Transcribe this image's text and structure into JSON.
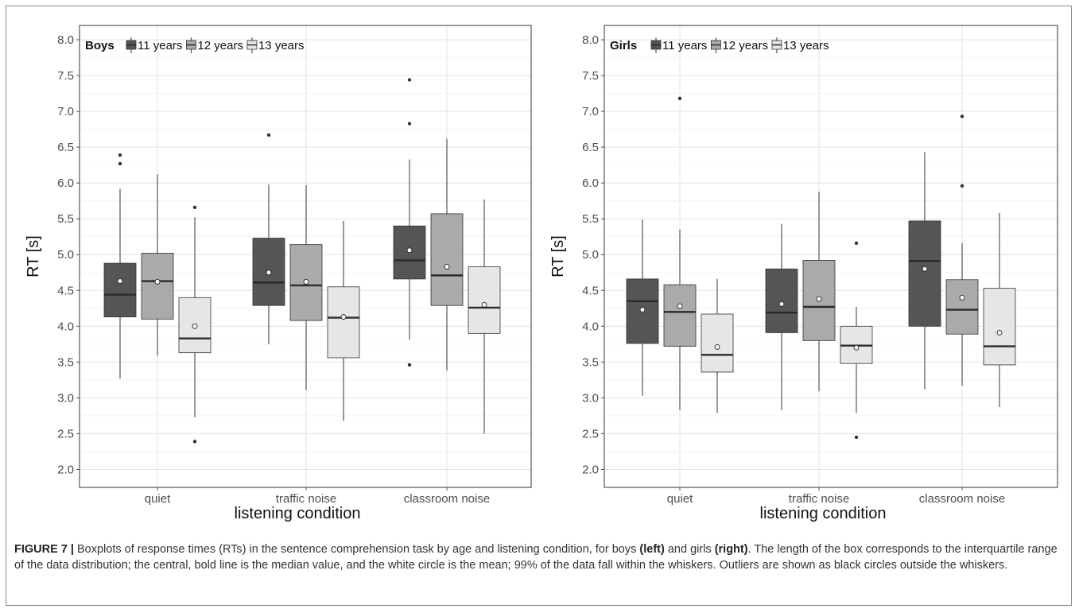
{
  "chart_data": [
    {
      "type": "boxplot",
      "panel": "left",
      "legend_title": "Boys",
      "legend_position": "top-left",
      "series": [
        {
          "name": "11 years",
          "color": "#555555"
        },
        {
          "name": "12 years",
          "color": "#aaaaaa"
        },
        {
          "name": "13 years",
          "color": "#e6e6e6"
        }
      ],
      "categories": [
        "quiet",
        "traffic noise",
        "classroom noise"
      ],
      "xlabel": "listening condition",
      "ylabel": "RT [s]",
      "ylim": [
        1.75,
        8.2
      ],
      "yticks": [
        "2.0",
        "2.5",
        "3.0",
        "3.5",
        "4.0",
        "4.5",
        "5.0",
        "5.5",
        "6.0",
        "6.5",
        "7.0",
        "7.5",
        "8.0"
      ],
      "grid": true,
      "boxes": [
        [
          {
            "whisker_low": 3.27,
            "q1": 4.13,
            "median": 4.44,
            "q3": 4.88,
            "whisker_high": 5.92,
            "mean": 4.63,
            "outliers": [
              6.27,
              6.39
            ]
          },
          {
            "whisker_low": 3.59,
            "q1": 4.1,
            "median": 4.63,
            "q3": 5.02,
            "whisker_high": 6.12,
            "mean": 4.62,
            "outliers": []
          },
          {
            "whisker_low": 2.73,
            "q1": 3.63,
            "median": 3.83,
            "q3": 4.4,
            "whisker_high": 5.52,
            "mean": 4.0,
            "outliers": [
              5.66,
              2.39
            ]
          }
        ],
        [
          {
            "whisker_low": 3.75,
            "q1": 4.29,
            "median": 4.61,
            "q3": 5.23,
            "whisker_high": 5.98,
            "mean": 4.75,
            "outliers": [
              6.67
            ]
          },
          {
            "whisker_low": 3.11,
            "q1": 4.08,
            "median": 4.57,
            "q3": 5.14,
            "whisker_high": 5.97,
            "mean": 4.62,
            "outliers": []
          },
          {
            "whisker_low": 2.68,
            "q1": 3.56,
            "median": 4.12,
            "q3": 4.55,
            "whisker_high": 5.47,
            "mean": 4.13,
            "outliers": []
          }
        ],
        [
          {
            "whisker_low": 3.81,
            "q1": 4.66,
            "median": 4.92,
            "q3": 5.4,
            "whisker_high": 6.33,
            "mean": 5.06,
            "outliers": [
              6.83,
              7.44,
              3.46
            ]
          },
          {
            "whisker_low": 3.38,
            "q1": 4.29,
            "median": 4.71,
            "q3": 5.57,
            "whisker_high": 6.62,
            "mean": 4.83,
            "outliers": []
          },
          {
            "whisker_low": 2.5,
            "q1": 3.9,
            "median": 4.26,
            "q3": 4.83,
            "whisker_high": 5.77,
            "mean": 4.3,
            "outliers": []
          }
        ]
      ]
    },
    {
      "type": "boxplot",
      "panel": "right",
      "legend_title": "Girls",
      "legend_position": "top-left",
      "series": [
        {
          "name": "11 years",
          "color": "#555555"
        },
        {
          "name": "12 years",
          "color": "#aaaaaa"
        },
        {
          "name": "13 years",
          "color": "#e6e6e6"
        }
      ],
      "categories": [
        "quiet",
        "traffic noise",
        "classroom noise"
      ],
      "xlabel": "listening condition",
      "ylabel": "RT [s]",
      "ylim": [
        1.75,
        8.2
      ],
      "yticks": [
        "2.0",
        "2.5",
        "3.0",
        "3.5",
        "4.0",
        "4.5",
        "5.0",
        "5.5",
        "6.0",
        "6.5",
        "7.0",
        "7.5",
        "8.0"
      ],
      "grid": true,
      "boxes": [
        [
          {
            "whisker_low": 3.03,
            "q1": 3.76,
            "median": 4.35,
            "q3": 4.66,
            "whisker_high": 5.49,
            "mean": 4.23,
            "outliers": []
          },
          {
            "whisker_low": 2.83,
            "q1": 3.72,
            "median": 4.2,
            "q3": 4.58,
            "whisker_high": 5.35,
            "mean": 4.28,
            "outliers": [
              7.18
            ]
          },
          {
            "whisker_low": 2.79,
            "q1": 3.36,
            "median": 3.6,
            "q3": 4.17,
            "whisker_high": 4.66,
            "mean": 3.71,
            "outliers": []
          }
        ],
        [
          {
            "whisker_low": 2.83,
            "q1": 3.91,
            "median": 4.19,
            "q3": 4.8,
            "whisker_high": 5.43,
            "mean": 4.31,
            "outliers": []
          },
          {
            "whisker_low": 3.09,
            "q1": 3.8,
            "median": 4.27,
            "q3": 4.92,
            "whisker_high": 5.88,
            "mean": 4.38,
            "outliers": []
          },
          {
            "whisker_low": 2.79,
            "q1": 3.48,
            "median": 3.73,
            "q3": 4.0,
            "whisker_high": 4.27,
            "mean": 3.7,
            "outliers": [
              5.16,
              2.45
            ]
          }
        ],
        [
          {
            "whisker_low": 3.12,
            "q1": 4.0,
            "median": 4.91,
            "q3": 5.47,
            "whisker_high": 6.43,
            "mean": 4.8,
            "outliers": []
          },
          {
            "whisker_low": 3.17,
            "q1": 3.89,
            "median": 4.23,
            "q3": 4.65,
            "whisker_high": 5.16,
            "mean": 4.4,
            "outliers": [
              5.96,
              6.93
            ]
          },
          {
            "whisker_low": 2.87,
            "q1": 3.46,
            "median": 3.72,
            "q3": 4.53,
            "whisker_high": 5.58,
            "mean": 3.91,
            "outliers": []
          }
        ]
      ]
    }
  ],
  "caption": {
    "label": "FIGURE 7 |",
    "text_part1": " Boxplots of response times (RTs) in the sentence comprehension task by age and listening condition, for boys ",
    "left_word": "(left)",
    "text_part2": " and girls ",
    "right_word": "(right)",
    "text_part3": ". The length of the box corresponds to the interquartile range of the data distribution; the central, bold line is the median value, and the white circle is the mean; 99% of the data fall within the whiskers. Outliers are shown as black circles outside the whiskers."
  }
}
